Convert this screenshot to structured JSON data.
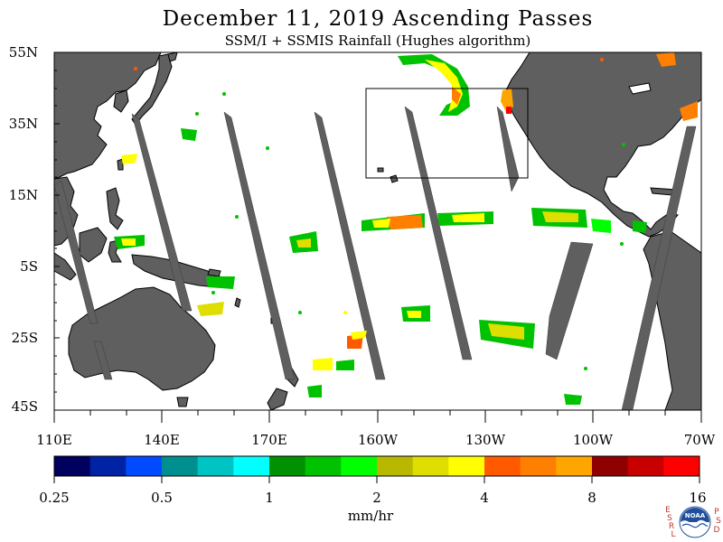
{
  "title": "December 11, 2019  Ascending Passes",
  "subtitle": "SSM/I + SSMIS Rainfall (Hughes algorithm)",
  "map": {
    "lat_labels": [
      "55N",
      "35N",
      "15N",
      "5S",
      "25S",
      "45S"
    ],
    "lon_labels": [
      "110E",
      "140E",
      "170E",
      "160W",
      "130W",
      "100W",
      "70W"
    ],
    "land_color": "#5f5f5f",
    "ocean_color": "#ffffff",
    "swath_gap_color": "#5f5f5f"
  },
  "colorbar": {
    "colors": [
      "#00005f",
      "#0023a6",
      "#004bff",
      "#008f8f",
      "#00c3c3",
      "#00ffff",
      "#009100",
      "#00c200",
      "#00ff00",
      "#b8b800",
      "#dede00",
      "#ffff00",
      "#ff5a00",
      "#ff7f00",
      "#ffa500",
      "#8f0000",
      "#c80000",
      "#ff0000"
    ],
    "tick_labels": [
      "0.25",
      "0.5",
      "1",
      "2",
      "4",
      "8",
      "16"
    ],
    "units": "mm/hr"
  },
  "logo": {
    "left_letters": [
      "E",
      "S",
      "R",
      "L"
    ],
    "right_letters": [
      "P",
      "S",
      "D"
    ],
    "center_text": "NOAA"
  }
}
